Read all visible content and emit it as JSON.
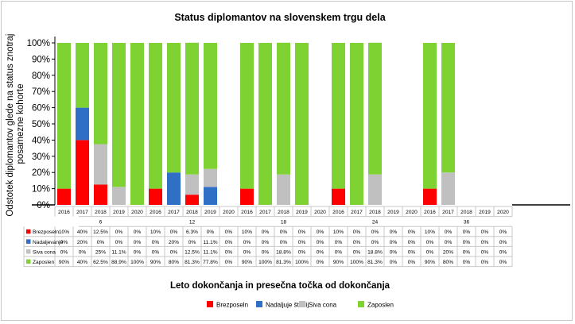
{
  "chart_data": {
    "type": "bar",
    "stacked": true,
    "title": "Status diplomantov na slovenskem trgu dela",
    "xlabel": "Leto dokončanja in presečna točka od dokončanja",
    "ylabel": "Odstotek diplomantov glede na status znotraj posamezne kohorte",
    "ylim": [
      0,
      100
    ],
    "yticks": [
      "0%",
      "10%",
      "20%",
      "30%",
      "40%",
      "50%",
      "60%",
      "70%",
      "80%",
      "90%",
      "100%"
    ],
    "grid": false,
    "legend_position": "bottom",
    "groups": [
      {
        "label": "6",
        "years": [
          "2016",
          "2017",
          "2018",
          "2019",
          "2020"
        ]
      },
      {
        "label": "12",
        "years": [
          "2016",
          "2017",
          "2018",
          "2019",
          "2020"
        ]
      },
      {
        "label": "18",
        "years": [
          "2016",
          "2017",
          "2018",
          "2019",
          "2020"
        ]
      },
      {
        "label": "24",
        "years": [
          "2016",
          "2017",
          "2018",
          "2019",
          "2020"
        ]
      },
      {
        "label": "36",
        "years": [
          "2016",
          "2017",
          "2018",
          "2019",
          "2020"
        ]
      }
    ],
    "series": [
      {
        "name": "Brezposeln",
        "color": "#ff0000",
        "values": [
          10,
          40,
          12.5,
          0,
          0,
          10,
          0,
          6.3,
          0,
          0,
          10,
          0,
          0,
          0,
          0,
          10,
          0,
          0,
          0,
          0,
          10,
          0,
          0,
          0,
          0
        ],
        "labels": [
          "10%",
          "40%",
          "12.5%",
          "0%",
          "0%",
          "10%",
          "0%",
          "6.3%",
          "0%",
          "0%",
          "10%",
          "0%",
          "0%",
          "0%",
          "0%",
          "10%",
          "0%",
          "0%",
          "0%",
          "0%",
          "10%",
          "0%",
          "0%",
          "0%",
          "0%"
        ]
      },
      {
        "name": "Nadaljuje študij",
        "table_name": "Nadaljevanje",
        "color": "#2f6fc6",
        "values": [
          0,
          20,
          0,
          0,
          0,
          0,
          20,
          0,
          11.1,
          0,
          0,
          0,
          0,
          0,
          0,
          0,
          0,
          0,
          0,
          0,
          0,
          0,
          0,
          0,
          0
        ],
        "labels": [
          "0%",
          "20%",
          "0%",
          "0%",
          "0%",
          "0%",
          "20%",
          "0%",
          "11.1%",
          "0%",
          "0%",
          "0%",
          "0%",
          "0%",
          "0%",
          "0%",
          "0%",
          "0%",
          "0%",
          "0%",
          "0%",
          "0%",
          "0%",
          "0%",
          "0%"
        ]
      },
      {
        "name": "Siva cona",
        "color": "#c0c0c0",
        "values": [
          0,
          0,
          25,
          11.1,
          0,
          0,
          0,
          12.5,
          11.1,
          0,
          0,
          0,
          18.8,
          0,
          0,
          0,
          0,
          18.8,
          0,
          0,
          0,
          20,
          0,
          0,
          0
        ],
        "labels": [
          "0%",
          "0%",
          "25%",
          "11.1%",
          "0%",
          "0%",
          "0%",
          "12.5%",
          "11.1%",
          "0%",
          "0%",
          "0%",
          "18.8%",
          "0%",
          "0%",
          "0%",
          "0%",
          "18.8%",
          "0%",
          "0%",
          "0%",
          "20%",
          "0%",
          "0%",
          "0%"
        ]
      },
      {
        "name": "Zaposlen",
        "color": "#7ed332",
        "values": [
          90,
          40,
          62.5,
          88.9,
          100,
          90,
          80,
          81.3,
          77.8,
          0,
          90,
          100,
          81.3,
          100,
          0,
          90,
          100,
          81.3,
          0,
          0,
          90,
          80,
          0,
          0,
          0
        ],
        "labels": [
          "90%",
          "40%",
          "62.5%",
          "88.9%",
          "100%",
          "90%",
          "80%",
          "81.3%",
          "77.8%",
          "0%",
          "90%",
          "100%",
          "81.3%",
          "100%",
          "0%",
          "90%",
          "100%",
          "81.3%",
          "0%",
          "0%",
          "90%",
          "80%",
          "0%",
          "0%",
          "0%"
        ]
      }
    ]
  }
}
